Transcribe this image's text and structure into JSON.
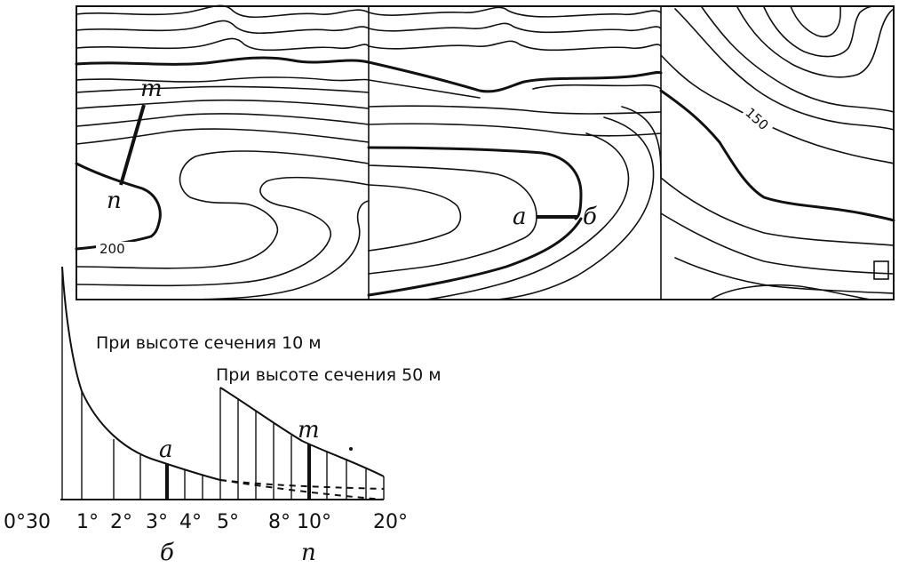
{
  "map": {
    "contour_labels": [
      "200",
      "150"
    ],
    "point_labels": {
      "m": "m",
      "n": "n",
      "a": "a",
      "b": "б"
    }
  },
  "scale": {
    "caption_10": "При высоте сечения 10 м",
    "caption_50": "При высоте сечения 50 м",
    "tick_labels": [
      "0°30",
      "1°",
      "2°",
      "3°",
      "4°",
      "5°",
      "8°",
      "10°",
      "20°"
    ],
    "segment_labels": {
      "a_top": "a",
      "b_bottom": "б",
      "m_top": "m",
      "n_bottom": "n"
    }
  },
  "colors": {
    "ink": "#111111",
    "paper": "#ffffff"
  }
}
